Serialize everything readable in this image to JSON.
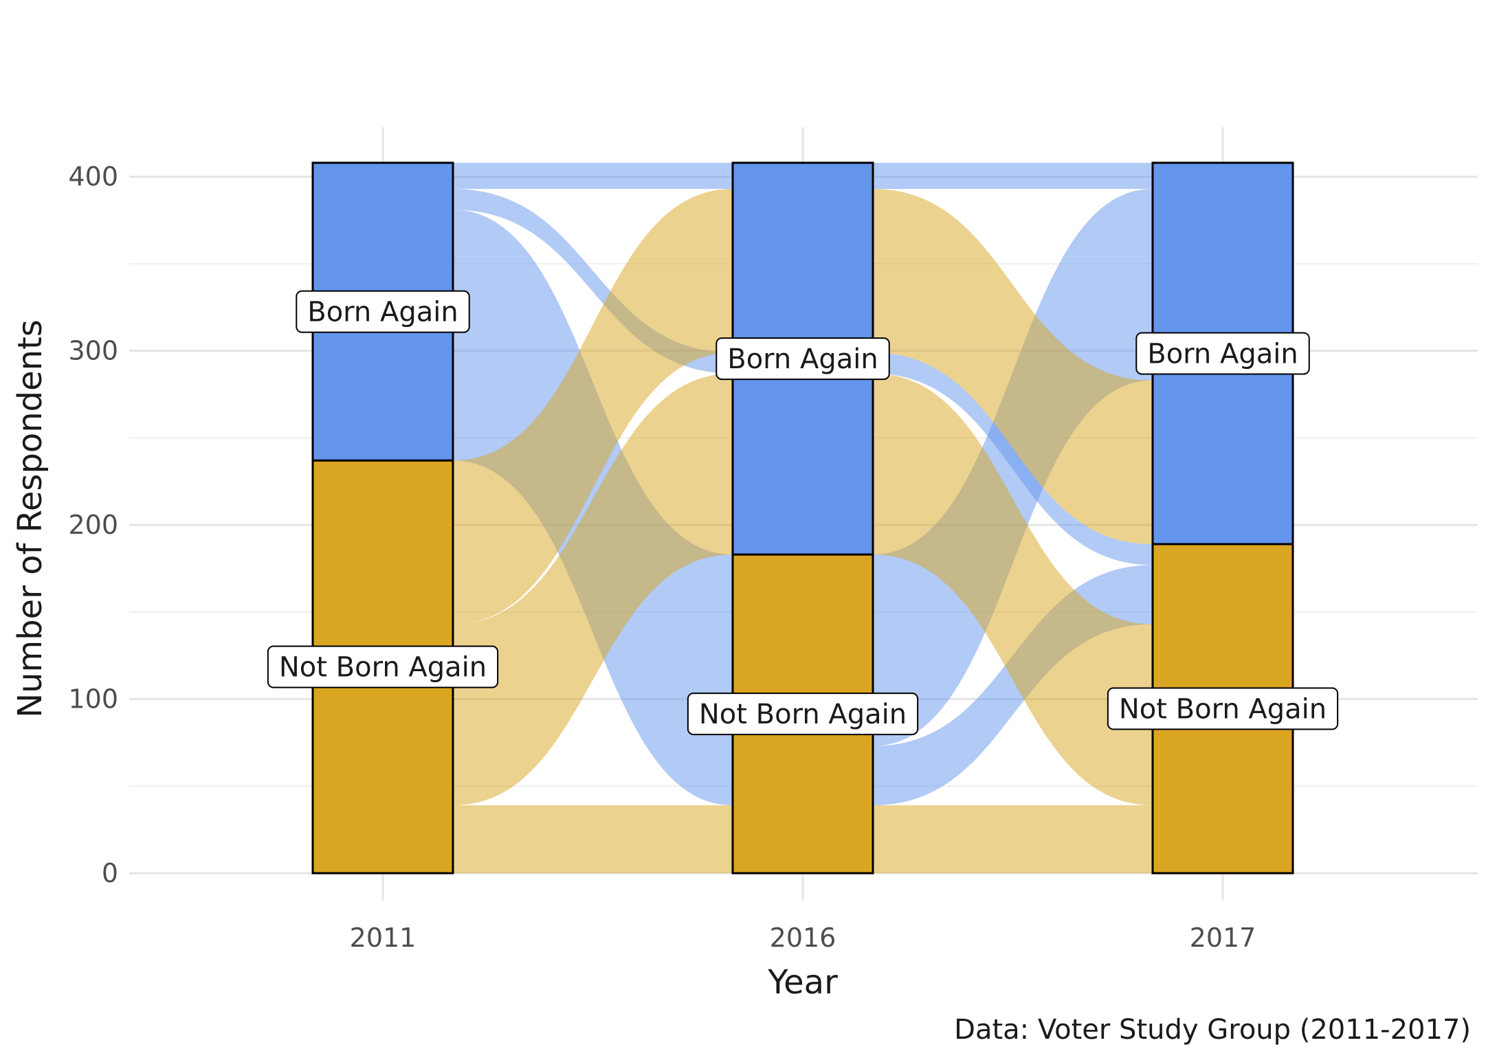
{
  "chart_data": {
    "type": "alluvial",
    "xlabel": "Year",
    "ylabel": "Number of Respondents",
    "caption": "Data: Voter Study Group (2011-2017)",
    "ylim": [
      0,
      408
    ],
    "yticks": [
      0,
      100,
      200,
      300,
      400
    ],
    "categories": [
      "2011",
      "2016",
      "2017"
    ],
    "strata": [
      {
        "name": "Born Again",
        "color": "#6495ED"
      },
      {
        "name": "Not Born Again",
        "color": "#DAA520"
      }
    ],
    "stratum_totals": [
      {
        "year": "2011",
        "values": {
          "Born Again": 171,
          "Not Born Again": 237
        }
      },
      {
        "year": "2016",
        "values": {
          "Born Again": 225,
          "Not Born Again": 183
        }
      },
      {
        "year": "2017",
        "values": {
          "Born Again": 219,
          "Not Born Again": 189
        }
      }
    ],
    "flows": [
      {
        "y2011": "Born Again",
        "y2016": "Born Again",
        "y2017": "Born Again",
        "count": 15
      },
      {
        "y2011": "Born Again",
        "y2016": "Born Again",
        "y2017": "Not Born Again",
        "count": 12
      },
      {
        "y2011": "Born Again",
        "y2016": "Not Born Again",
        "y2017": "Born Again",
        "count": 110
      },
      {
        "y2011": "Born Again",
        "y2016": "Not Born Again",
        "y2017": "Not Born Again",
        "count": 34
      },
      {
        "y2011": "Not Born Again",
        "y2016": "Born Again",
        "y2017": "Born Again",
        "count": 94
      },
      {
        "y2011": "Not Born Again",
        "y2016": "Born Again",
        "y2017": "Not Born Again",
        "count": 104
      },
      {
        "y2011": "Not Born Again",
        "y2016": "Not Born Again",
        "y2017": "Born Again",
        "count": 0
      },
      {
        "y2011": "Not Born Again",
        "y2016": "Not Born Again",
        "y2017": "Not Born Again",
        "count": 39
      }
    ],
    "labels": {
      "born_again": "Born Again",
      "not_born_again": "Not Born Again"
    },
    "grid": true
  }
}
